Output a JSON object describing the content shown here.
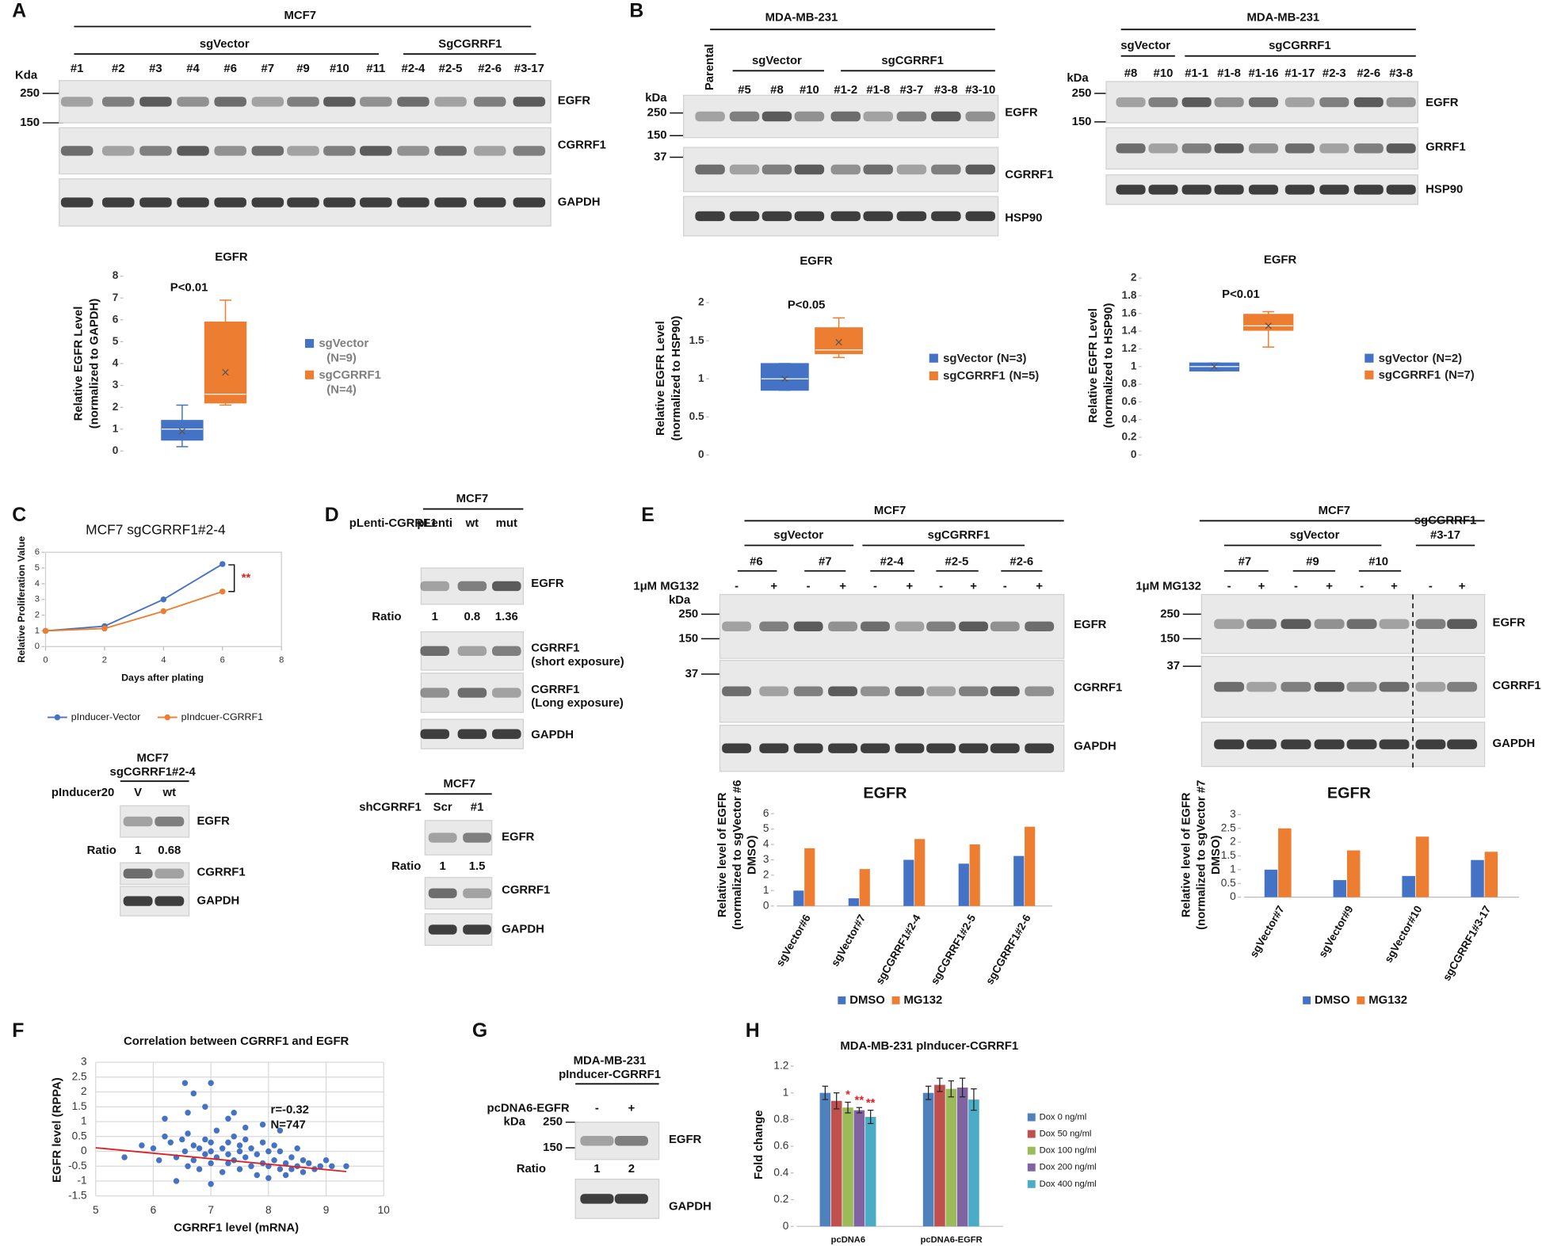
{
  "panel_labels": [
    "A",
    "B",
    "C",
    "D",
    "E",
    "F",
    "G",
    "H"
  ],
  "blots": {
    "A": {
      "cell_line": "MCF7",
      "groups": [
        "sgVector",
        "SgCGRRF1"
      ],
      "lanes": [
        "#1",
        "#2",
        "#3",
        "#4",
        "#6",
        "#7",
        "#9",
        "#10",
        "#11",
        "#2-4",
        "#2-5",
        "#2-6",
        "#3-17"
      ],
      "unit": "Kda",
      "markers": [
        250,
        150
      ],
      "rows": [
        "EGFR",
        "CGRRF1",
        "GAPDH"
      ]
    },
    "B_left": {
      "cell_line": "MDA-MB-231",
      "groups": [
        "sgVector",
        "sgCGRRF1"
      ],
      "lanes": [
        "Parental",
        "#5",
        "#8",
        "#10",
        "#1-2",
        "#1-8",
        "#3-7",
        "#3-8",
        "#3-10"
      ],
      "unit": "kDa",
      "markers": [
        250,
        150,
        37
      ],
      "rows": [
        "EGFR",
        "CGRRF1",
        "HSP90"
      ]
    },
    "B_right": {
      "cell_line": "MDA-MB-231",
      "groups": [
        "sgVector",
        "sgCGRRF1"
      ],
      "lanes": [
        "#8",
        "#10",
        "#1-1",
        "#1-8",
        "#1-16",
        "#1-17",
        "#2-3",
        "#2-6",
        "#3-8"
      ],
      "unit": "kDa",
      "markers": [
        250,
        150
      ],
      "rows": [
        "EGFR",
        "GRRF1",
        "HSP90"
      ]
    },
    "C": {
      "cell_line": "MCF7",
      "clone": "sgCGRRF1#2-4",
      "construct": "pInducer20",
      "lanes": [
        "V",
        "wt"
      ],
      "ratio_label": "Ratio",
      "ratios": [
        1,
        0.68
      ],
      "rows": [
        "EGFR",
        "CGRRF1",
        "GAPDH"
      ]
    },
    "D_top": {
      "cell_line": "MCF7",
      "construct": "pLenti-CGRRF1",
      "lanes": [
        "pLenti",
        "wt",
        "mut"
      ],
      "ratio_label": "Ratio",
      "ratios": [
        1,
        0.8,
        1.36
      ],
      "rows": [
        "EGFR",
        [
          "CGRRF1",
          "(short exposure)"
        ],
        [
          "CGRRF1",
          "(Long exposure)"
        ],
        "GAPDH"
      ]
    },
    "D_bottom": {
      "cell_line": "MCF7",
      "construct": "shCGRRF1",
      "lanes": [
        "Scr",
        "#1"
      ],
      "ratio_label": "Ratio",
      "ratios": [
        1,
        1.5
      ],
      "rows": [
        "EGFR",
        "CGRRF1",
        "GAPDH"
      ]
    },
    "E_left": {
      "cell_line": "MCF7",
      "groups": [
        "sgVector",
        "sgCGRRF1"
      ],
      "clones": [
        "#6",
        "#7",
        "#2-4",
        "#2-5",
        "#2-6"
      ],
      "treatment": "1μM MG132",
      "lanes": [
        "-",
        "+",
        "-",
        "+",
        "-",
        "+",
        "-",
        "+",
        "-",
        "+"
      ],
      "unit": "kDa",
      "markers": [
        250,
        150,
        37
      ],
      "rows": [
        "EGFR",
        "CGRRF1",
        "GAPDH"
      ]
    },
    "E_right": {
      "cell_line": "MCF7",
      "groups": [
        "sgVector",
        "sgCGRRF1"
      ],
      "clones": [
        "#7",
        "#9",
        "#10",
        "#3-17"
      ],
      "treatment": "1μM MG132",
      "lanes": [
        "-",
        "+",
        "-",
        "+",
        "-",
        "+",
        "-",
        "+"
      ],
      "markers": [
        250,
        150,
        37
      ],
      "rows": [
        "EGFR",
        "CGRRF1",
        "GAPDH"
      ]
    },
    "G": {
      "cell_line": "MDA-MB-231",
      "construct_line": "pInducer-CGRRF1",
      "treatment": "pcDNA6-EGFR",
      "lanes": [
        "-",
        "+"
      ],
      "unit": "kDa",
      "markers": [
        250,
        150
      ],
      "ratio_label": "Ratio",
      "ratios": [
        1,
        2
      ],
      "rows": [
        "EGFR",
        "GAPDH"
      ]
    }
  },
  "chart_data": [
    {
      "type": "box",
      "title": "EGFR",
      "ylabel": [
        "Relative EGFR Level",
        "(normalized to GAPDH)"
      ],
      "ylim": [
        0,
        8
      ],
      "yticks": [
        0,
        1,
        2,
        3,
        4,
        5,
        6,
        7,
        8
      ],
      "annotation": "P<0.01",
      "series": [
        {
          "name": "sgVector",
          "n": "(N=9)",
          "color": "#4472c4",
          "min": 0.2,
          "q1": 0.5,
          "median": 1.0,
          "q3": 1.4,
          "max": 2.1,
          "mean": 0.9
        },
        {
          "name": "sgCGRRF1",
          "n": "(N=4)",
          "color": "#ed7d31",
          "min": 2.1,
          "q1": 2.2,
          "median": 2.6,
          "q3": 5.9,
          "max": 6.9,
          "mean": 3.6
        }
      ]
    },
    {
      "type": "box",
      "title": "EGFR",
      "ylabel": [
        "Relative EGFR Level",
        "(normalized to HSP90)"
      ],
      "ylim": [
        0,
        2
      ],
      "yticks": [
        0,
        0.5,
        1,
        1.5,
        2
      ],
      "annotation": "P<0.05",
      "series": [
        {
          "name": "sgVector",
          "n": "(N=3)",
          "color": "#4472c4",
          "min": 0.85,
          "q1": 0.85,
          "median": 1.0,
          "q3": 1.2,
          "max": 1.2,
          "mean": 1.0
        },
        {
          "name": "sgCGRRF1",
          "n": "(N=5)",
          "color": "#ed7d31",
          "min": 1.28,
          "q1": 1.33,
          "median": 1.38,
          "q3": 1.67,
          "max": 1.8,
          "mean": 1.48
        }
      ]
    },
    {
      "type": "box",
      "title": "EGFR",
      "ylabel": [
        "Relative EGFR Level",
        "(normalized to HSP90)"
      ],
      "ylim": [
        0,
        2
      ],
      "yticks": [
        0,
        0.2,
        0.4,
        0.6,
        0.8,
        1,
        1.2,
        1.4,
        1.6,
        1.8,
        2
      ],
      "annotation": "P<0.01",
      "series": [
        {
          "name": "sgVector",
          "n": "(N=2)",
          "color": "#4472c4",
          "min": 0.95,
          "q1": 0.95,
          "median": 1.0,
          "q3": 1.04,
          "max": 1.04,
          "mean": 1.0
        },
        {
          "name": "sgCGRRF1",
          "n": "(N=7)",
          "color": "#ed7d31",
          "min": 1.22,
          "q1": 1.41,
          "median": 1.46,
          "q3": 1.59,
          "max": 1.62,
          "mean": 1.46
        }
      ]
    },
    {
      "type": "line",
      "title": "MCF7 sgCGRRF1#2-4",
      "xlabel": "Days after plating",
      "ylabel": "Relative Proliferation Value",
      "x": [
        0,
        2,
        4,
        6
      ],
      "xlim": [
        0,
        8
      ],
      "xticks": [
        0,
        2,
        4,
        6,
        8
      ],
      "ylim": [
        0,
        6
      ],
      "yticks": [
        0,
        1,
        2,
        3,
        4,
        5,
        6
      ],
      "annotation": "**",
      "series": [
        {
          "name": "pInducer-Vector",
          "color": "#4472c4",
          "values": [
            1,
            1.3,
            3.0,
            5.25
          ],
          "errors": [
            0.03,
            0.05,
            0.12,
            0.08
          ]
        },
        {
          "name": "pIndcuer-CGRRF1",
          "color": "#ed7d31",
          "values": [
            1,
            1.15,
            2.25,
            3.5
          ],
          "errors": [
            0.03,
            0.05,
            0.15,
            0.15
          ]
        }
      ]
    },
    {
      "type": "bar",
      "title": "EGFR",
      "ylabel": [
        "Relative level of EGFR",
        "(normalized to sgVector #6",
        "DMSO)"
      ],
      "categories": [
        "sgVector#6",
        "sgVector#7",
        "sgCGRRF1#2-4",
        "sgCGRRF1#2-5",
        "sgCGRRF1#2-6"
      ],
      "ylim": [
        0,
        6
      ],
      "yticks": [
        0,
        1,
        2,
        3,
        4,
        5,
        6
      ],
      "series": [
        {
          "name": "DMSO",
          "color": "#4472c4",
          "values": [
            1,
            0.5,
            3,
            2.75,
            3.25
          ]
        },
        {
          "name": "MG132",
          "color": "#ed7d31",
          "values": [
            3.75,
            2.4,
            4.35,
            4,
            5.15
          ]
        }
      ]
    },
    {
      "type": "bar",
      "title": "EGFR",
      "ylabel": [
        "Relative level of EGFR",
        "(normalized to sgVector #7",
        "DMSO)"
      ],
      "categories": [
        "sgVector#7",
        "sgVector#9",
        "sgVector#10",
        "sgCGRRF1#3-17"
      ],
      "ylim": [
        0,
        3
      ],
      "yticks": [
        0,
        0.5,
        1,
        1.5,
        2,
        2.5,
        3
      ],
      "series": [
        {
          "name": "DMSO",
          "color": "#4472c4",
          "values": [
            1,
            0.62,
            0.77,
            1.35
          ]
        },
        {
          "name": "MG132",
          "color": "#ed7d31",
          "values": [
            2.5,
            1.7,
            2.2,
            1.65
          ]
        }
      ]
    },
    {
      "type": "scatter",
      "title": "Correlation between CGRRF1 and EGFR",
      "xlabel": "CGRRF1 level (mRNA)",
      "ylabel": "EGFR level (RPPA)",
      "xlim": [
        5,
        10
      ],
      "xticks": [
        5,
        6,
        7,
        8,
        9,
        10
      ],
      "ylim": [
        -1.5,
        3
      ],
      "yticks": [
        -1.5,
        -1,
        -0.5,
        0,
        0.5,
        1,
        1.5,
        2,
        2.5,
        3
      ],
      "grid": true,
      "color": "#4472c4",
      "annotation": [
        "r=-0.32",
        "N=747"
      ],
      "trend_line": {
        "color": "#e02020",
        "x": [
          5,
          9.35
        ],
        "values": [
          0.12,
          -0.68
        ]
      },
      "x": [
        5.5,
        5.8,
        6.0,
        6.1,
        6.2,
        6.3,
        6.4,
        6.5,
        6.55,
        6.6,
        6.6,
        6.7,
        6.7,
        6.8,
        6.8,
        6.9,
        6.9,
        7.0,
        7.0,
        7.0,
        7.1,
        7.1,
        7.2,
        7.2,
        7.3,
        7.3,
        7.3,
        7.4,
        7.4,
        7.5,
        7.5,
        7.5,
        7.6,
        7.6,
        7.7,
        7.7,
        7.8,
        7.8,
        7.9,
        7.9,
        8.0,
        8.0,
        8.0,
        8.1,
        8.1,
        8.2,
        8.2,
        8.3,
        8.3,
        8.4,
        8.4,
        8.5,
        8.5,
        8.6,
        8.6,
        8.7,
        8.8,
        8.9,
        9.0,
        9.1,
        9.35,
        6.55,
        7.0,
        6.7,
        7.4,
        6.6,
        7.3,
        7.9,
        6.9,
        6.2,
        7.6,
        8.2,
        7.0,
        6.4
      ],
      "values": [
        -0.2,
        0.2,
        0.1,
        -0.3,
        0.5,
        0.3,
        -0.2,
        0.4,
        0.0,
        -0.5,
        0.6,
        0.2,
        -0.3,
        0.1,
        -0.6,
        0.4,
        -0.1,
        0.3,
        -0.4,
        0.0,
        0.7,
        -0.2,
        0.1,
        -0.7,
        0.3,
        -0.1,
        -0.4,
        0.5,
        -0.3,
        0.0,
        -0.6,
        0.2,
        -0.2,
        0.4,
        -0.5,
        0.1,
        -0.1,
        -0.8,
        0.3,
        -0.4,
        0.0,
        -0.5,
        -0.9,
        0.2,
        -0.3,
        -0.6,
        0.0,
        -0.4,
        -0.8,
        -0.2,
        -0.6,
        -0.5,
        0.1,
        -0.7,
        -0.3,
        -0.4,
        -0.6,
        -0.5,
        -0.3,
        -0.5,
        -0.5,
        2.3,
        2.3,
        1.95,
        1.3,
        1.3,
        1.1,
        0.9,
        1.5,
        1.1,
        0.8,
        0.7,
        -1.1,
        -1.0
      ]
    },
    {
      "type": "bar",
      "title": "MDA-MB-231 pInducer-CGRRF1",
      "ylabel": [
        "Fold change"
      ],
      "categories": [
        "pcDNA6",
        "pcDNA6-EGFR"
      ],
      "ylim": [
        0,
        1.2
      ],
      "yticks": [
        0,
        0.2,
        0.4,
        0.6,
        0.8,
        1,
        1.2
      ],
      "series": [
        {
          "name": "Dox 0 ng/ml",
          "color": "#4f81bd",
          "values": [
            1,
            1
          ],
          "errors": [
            0.05,
            0.05
          ]
        },
        {
          "name": "Dox 50 ng/ml",
          "color": "#c0504d",
          "values": [
            0.94,
            1.06
          ],
          "errors": [
            0.06,
            0.05
          ]
        },
        {
          "name": "Dox 100 ng/ml",
          "color": "#9bbb59",
          "values": [
            0.89,
            1.03
          ],
          "errors": [
            0.04,
            0.06
          ],
          "marks": [
            "*",
            null
          ]
        },
        {
          "name": "Dox 200 ng/ml",
          "color": "#8064a2",
          "values": [
            0.87,
            1.04
          ],
          "errors": [
            0.02,
            0.07
          ],
          "marks": [
            "**",
            null
          ]
        },
        {
          "name": "Dox 400 ng/ml",
          "color": "#4bacc6",
          "values": [
            0.82,
            0.95
          ],
          "errors": [
            0.05,
            0.08
          ],
          "marks": [
            "**",
            null
          ]
        }
      ]
    }
  ]
}
